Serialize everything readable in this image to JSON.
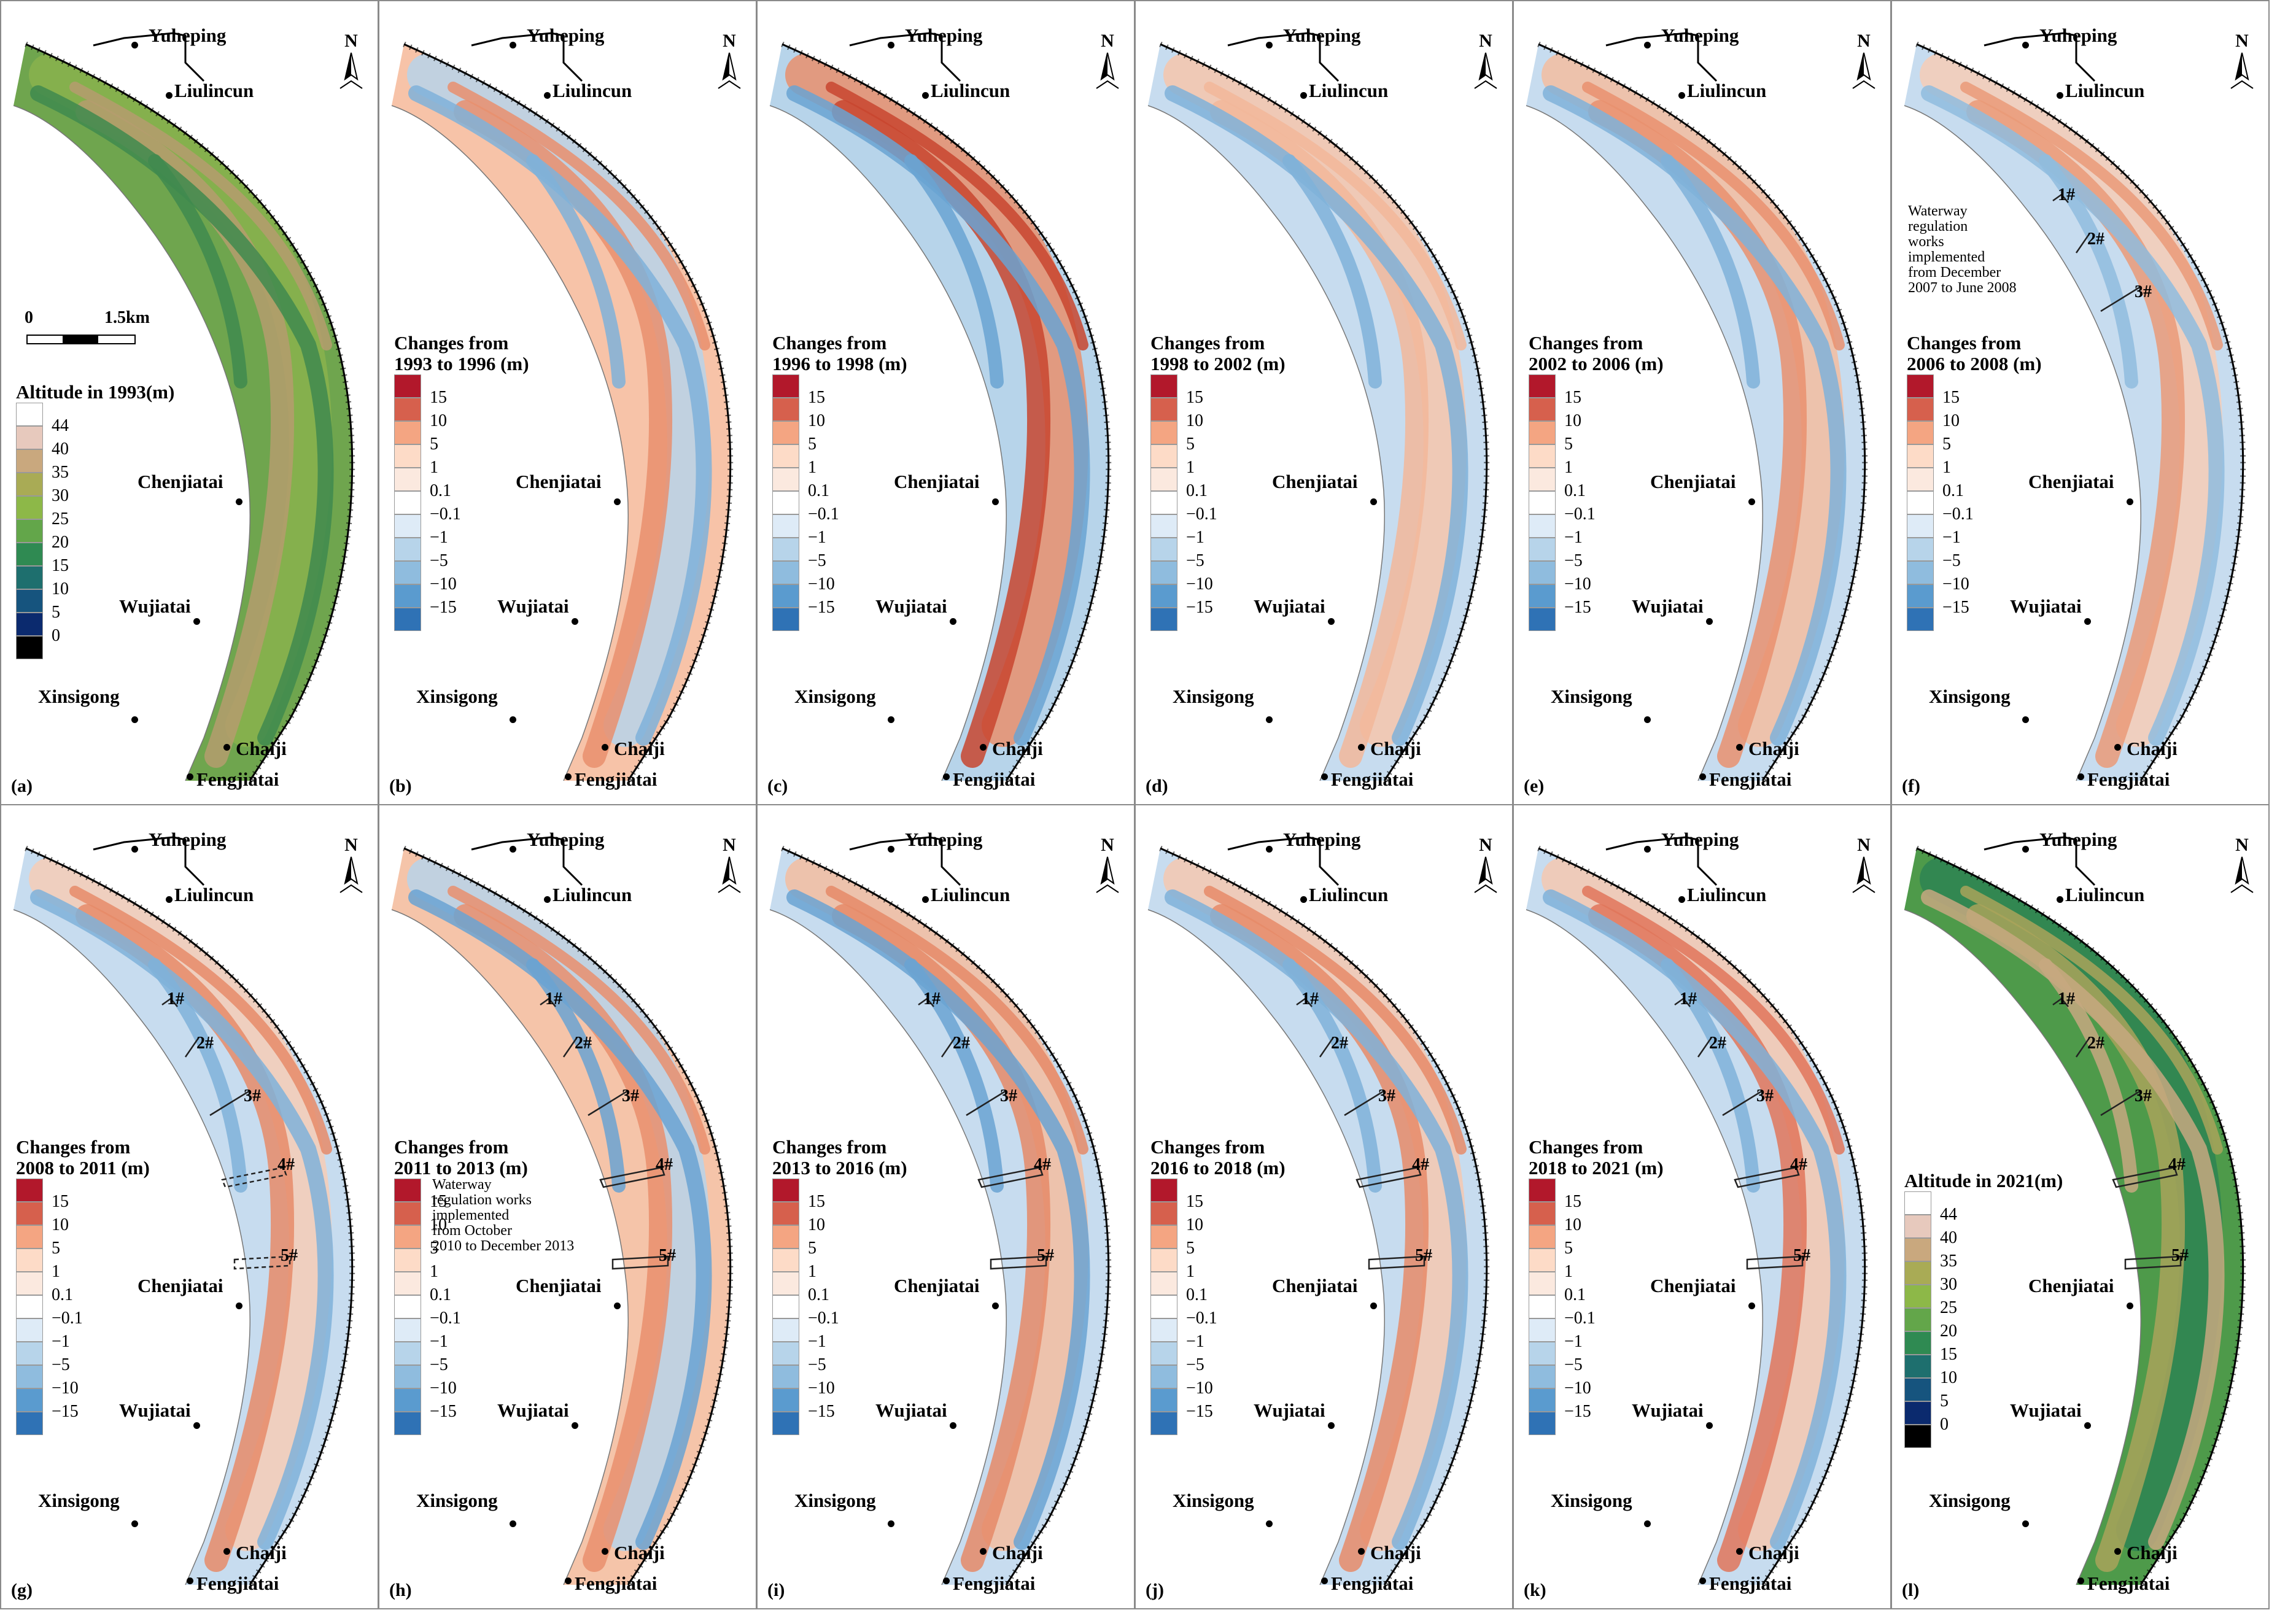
{
  "north_label": "N",
  "scale": {
    "zero": "0",
    "dist": "1.5km"
  },
  "places": {
    "yuheping": "Yuheping",
    "liulincun": "Liulincun",
    "chenjiatai": "Chenjiatai",
    "wujiatai": "Wujiatai",
    "xinsigong": "Xinsigong",
    "chaiji": "Chaiji",
    "fengjiatai": "Fengjiatai"
  },
  "works": [
    "1#",
    "2#",
    "3#",
    "4#",
    "5#"
  ],
  "annotations": {
    "works_2008": "Waterway\nregulation\nworks\nimplemented\nfrom December\n2007 to June 2008",
    "works_2013": "Waterway\nregulation works\nimplemented\nfrom October\n2010 to December 2013"
  },
  "legends": {
    "change_ticks": [
      "15",
      "10",
      "5",
      "1",
      "0.1",
      "−0.1",
      "−1",
      "−5",
      "−10",
      "−15"
    ],
    "change_colors": [
      "#b2182b",
      "#d6604d",
      "#f4a582",
      "#fddbc7",
      "#fbe9df",
      "#ffffff",
      "#deebf7",
      "#b7d4ea",
      "#8fbcde",
      "#5a9bcf",
      "#2f72b5"
    ],
    "altitude_ticks": [
      "44",
      "40",
      "35",
      "30",
      "25",
      "20",
      "15",
      "10",
      "5",
      "0"
    ],
    "altitude_colors": [
      "#ffffff",
      "#e7c9bd",
      "#c9a87e",
      "#a9ab55",
      "#8db848",
      "#63a64a",
      "#2f8a52",
      "#1e6f6e",
      "#16547e",
      "#0b2a6e",
      "#000000"
    ]
  },
  "panels": [
    {
      "id": "a",
      "label": "(a)",
      "kind": "altitude",
      "legend_title": "Altitude in 1993(m)",
      "works_shown": 0
    },
    {
      "id": "b",
      "label": "(b)",
      "kind": "change",
      "legend_title": "Changes from\n1993 to 1996 (m)",
      "works_shown": 0
    },
    {
      "id": "c",
      "label": "(c)",
      "kind": "change",
      "legend_title": "Changes from\n1996 to 1998 (m)",
      "works_shown": 0
    },
    {
      "id": "d",
      "label": "(d)",
      "kind": "change",
      "legend_title": "Changes from\n1998 to 2002 (m)",
      "works_shown": 0
    },
    {
      "id": "e",
      "label": "(e)",
      "kind": "change",
      "legend_title": "Changes from\n2002 to 2006 (m)",
      "works_shown": 0
    },
    {
      "id": "f",
      "label": "(f)",
      "kind": "change",
      "legend_title": "Changes from\n2006 to 2008 (m)",
      "works_shown": 3
    },
    {
      "id": "g",
      "label": "(g)",
      "kind": "change",
      "legend_title": "Changes from\n2008 to 2011 (m)",
      "works_shown": 5
    },
    {
      "id": "h",
      "label": "(h)",
      "kind": "change",
      "legend_title": "Changes from\n2011 to 2013 (m)",
      "works_shown": 5
    },
    {
      "id": "i",
      "label": "(i)",
      "kind": "change",
      "legend_title": "Changes from\n2013 to 2016 (m)",
      "works_shown": 5
    },
    {
      "id": "j",
      "label": "(j)",
      "kind": "change",
      "legend_title": "Changes from\n2016 to 2018 (m)",
      "works_shown": 5
    },
    {
      "id": "k",
      "label": "(k)",
      "kind": "change",
      "legend_title": "Changes from\n2018 to 2021 (m)",
      "works_shown": 5
    },
    {
      "id": "l",
      "label": "(l)",
      "kind": "altitude",
      "legend_title": "Altitude in 2021(m)",
      "works_shown": 5
    }
  ]
}
